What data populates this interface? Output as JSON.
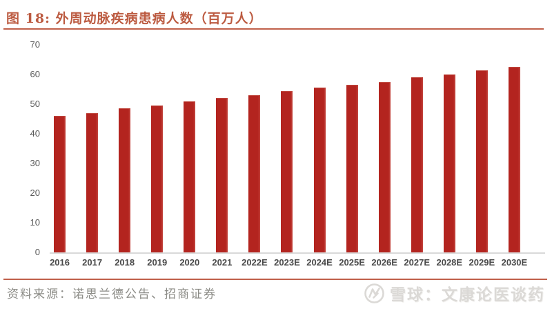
{
  "header": {
    "title": "图 18:  外周动脉疾病患病人数（百万人）"
  },
  "chart_data": {
    "type": "bar",
    "title": "外周动脉疾病患病人数（百万人）",
    "categories": [
      "2016",
      "2017",
      "2018",
      "2019",
      "2020",
      "2021",
      "2022E",
      "2023E",
      "2024E",
      "2025E",
      "2026E",
      "2027E",
      "2028E",
      "2029E",
      "2030E"
    ],
    "values": [
      46,
      47,
      48.5,
      49.5,
      51,
      52,
      53,
      54.5,
      55.5,
      56.5,
      57.5,
      59,
      60,
      61.5,
      62.5
    ],
    "xlabel": "",
    "ylabel": "",
    "ylim": [
      0,
      70
    ],
    "yticks": [
      0,
      10,
      20,
      30,
      40,
      50,
      60,
      70
    ],
    "grid": false,
    "legend": "none",
    "bar_color": "#B3241F"
  },
  "footer": {
    "source": "资料来源：诺思兰德公告、招商证券",
    "watermark_text": "雪球：文康论医谈药",
    "watermark_logo": "xueqiu-logo"
  },
  "colors": {
    "accent_rule": "#C0604A",
    "title_text": "#BC5B41",
    "bar": "#B3241F",
    "axis_text": "#595959",
    "x_axis_text": "#4A4A4A",
    "baseline": "#D9D9D9",
    "source_text": "#8B8B86",
    "watermark": "#DBD9D6"
  }
}
